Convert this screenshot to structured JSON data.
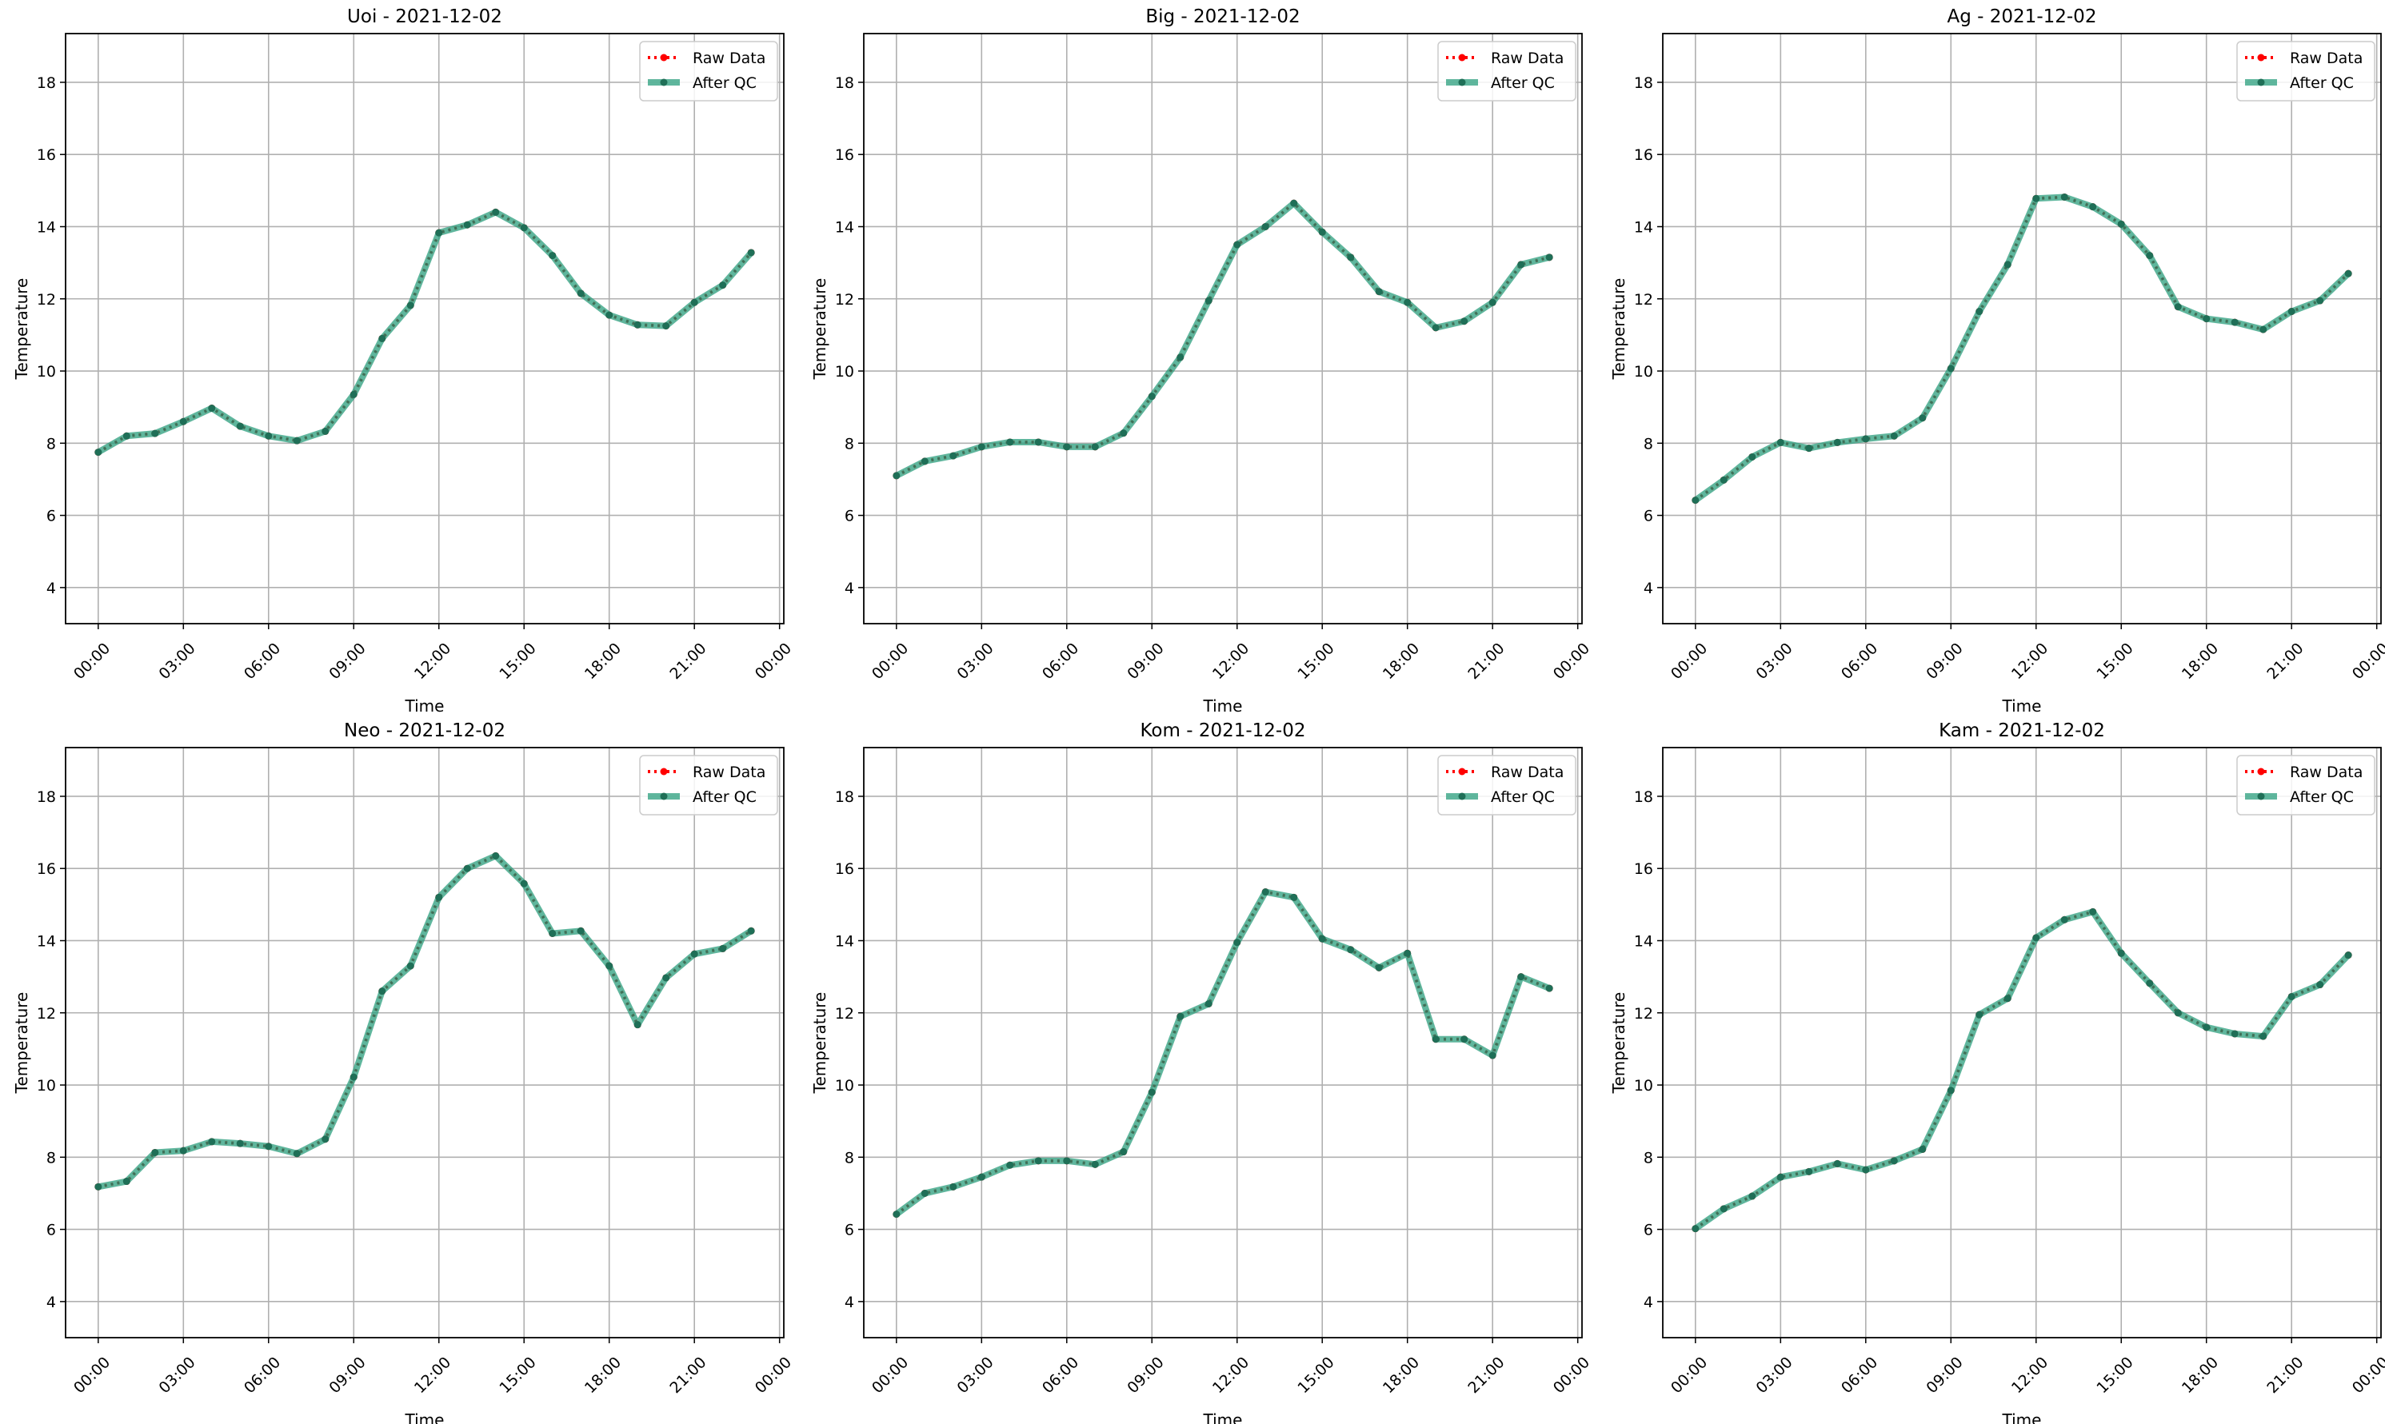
{
  "chart_data": {
    "type": "line",
    "layout": "2x3 grid",
    "xlabel": "Time",
    "ylabel": "Temperature",
    "x_hours": [
      0,
      1,
      2,
      3,
      4,
      5,
      6,
      7,
      8,
      9,
      10,
      11,
      12,
      13,
      14,
      15,
      16,
      17,
      18,
      19,
      20,
      21,
      22,
      23
    ],
    "xlim_hours": [
      -1.15,
      24.15
    ],
    "ylim": [
      3.0,
      19.35
    ],
    "xtick_hours": [
      0,
      3,
      6,
      9,
      12,
      15,
      18,
      21,
      24
    ],
    "xtick_labels": [
      "00:00",
      "03:00",
      "06:00",
      "09:00",
      "12:00",
      "15:00",
      "18:00",
      "21:00",
      "00:00"
    ],
    "yticks": [
      4,
      6,
      8,
      10,
      12,
      14,
      16,
      18
    ],
    "ytick_labels": [
      "4",
      "6",
      "8",
      "10",
      "12",
      "14",
      "16",
      "18"
    ],
    "grid": true,
    "legend_placement": "top-right",
    "legend": [
      "Raw Data",
      "After QC"
    ],
    "colors": {
      "raw": "#ff0000",
      "qc": "#2a9d7c",
      "qc_marker": "#1f6f57",
      "grid": "#b0b0b0"
    },
    "panels": [
      {
        "title": "Uoi - 2021-12-02",
        "raw": [
          7.75,
          8.2,
          8.27,
          8.6,
          8.97,
          8.47,
          8.2,
          8.07,
          8.33,
          9.35,
          10.9,
          11.82,
          13.83,
          14.05,
          14.4,
          13.97,
          13.2,
          12.15,
          11.55,
          11.28,
          11.25,
          11.9,
          12.38,
          13.28
        ],
        "qc": [
          7.75,
          8.2,
          8.27,
          8.6,
          8.97,
          8.47,
          8.2,
          8.07,
          8.33,
          9.35,
          10.9,
          11.82,
          13.83,
          14.05,
          14.4,
          13.97,
          13.2,
          12.15,
          11.55,
          11.28,
          11.25,
          11.9,
          12.38,
          13.28
        ]
      },
      {
        "title": "Big - 2021-12-02",
        "raw": [
          7.1,
          7.5,
          7.65,
          7.9,
          8.03,
          8.03,
          7.9,
          7.9,
          8.28,
          9.3,
          10.38,
          11.95,
          13.5,
          14.0,
          14.65,
          13.85,
          13.15,
          12.2,
          11.9,
          11.2,
          11.38,
          11.9,
          12.95,
          13.15
        ],
        "qc": [
          7.1,
          7.5,
          7.65,
          7.9,
          8.03,
          8.03,
          7.9,
          7.9,
          8.28,
          9.3,
          10.38,
          11.95,
          13.5,
          14.0,
          14.65,
          13.85,
          13.15,
          12.2,
          11.9,
          11.2,
          11.38,
          11.9,
          12.95,
          13.15
        ]
      },
      {
        "title": "Ag - 2021-12-02",
        "raw": [
          6.42,
          6.98,
          7.62,
          8.02,
          7.86,
          8.02,
          8.12,
          8.2,
          8.7,
          10.07,
          11.65,
          12.95,
          14.78,
          14.82,
          14.55,
          14.07,
          13.2,
          11.78,
          11.45,
          11.35,
          11.15,
          11.65,
          11.95,
          12.7
        ],
        "qc": [
          6.42,
          6.98,
          7.62,
          8.02,
          7.86,
          8.02,
          8.12,
          8.2,
          8.7,
          10.07,
          11.65,
          12.95,
          14.78,
          14.82,
          14.55,
          14.07,
          13.2,
          11.78,
          11.45,
          11.35,
          11.15,
          11.65,
          11.95,
          12.7
        ]
      },
      {
        "title": "Neo - 2021-12-02",
        "raw": [
          7.18,
          7.33,
          8.13,
          8.18,
          8.43,
          8.38,
          8.3,
          8.1,
          8.5,
          10.22,
          12.6,
          13.3,
          15.2,
          16.0,
          16.35,
          15.58,
          14.2,
          14.27,
          13.3,
          11.67,
          12.97,
          13.63,
          13.78,
          14.27
        ],
        "qc": [
          7.18,
          7.33,
          8.13,
          8.18,
          8.43,
          8.38,
          8.3,
          8.1,
          8.5,
          10.22,
          12.6,
          13.3,
          15.2,
          16.0,
          16.35,
          15.58,
          14.2,
          14.27,
          13.3,
          11.67,
          12.97,
          13.63,
          13.78,
          14.27
        ]
      },
      {
        "title": "Kom - 2021-12-02",
        "raw": [
          6.42,
          7.0,
          7.18,
          7.45,
          7.78,
          7.9,
          7.9,
          7.8,
          8.15,
          9.8,
          11.9,
          12.25,
          13.95,
          15.35,
          15.2,
          14.05,
          13.75,
          13.25,
          13.65,
          11.27,
          11.27,
          10.82,
          13.0,
          12.68
        ],
        "qc": [
          6.42,
          7.0,
          7.18,
          7.45,
          7.78,
          7.9,
          7.9,
          7.8,
          8.15,
          9.8,
          11.9,
          12.25,
          13.95,
          15.35,
          15.2,
          14.05,
          13.75,
          13.25,
          13.65,
          11.27,
          11.27,
          10.82,
          13.0,
          12.68
        ]
      },
      {
        "title": "Kam - 2021-12-02",
        "raw": [
          6.02,
          6.57,
          6.92,
          7.45,
          7.6,
          7.82,
          7.65,
          7.9,
          8.22,
          9.85,
          11.95,
          12.4,
          14.08,
          14.58,
          14.8,
          13.65,
          12.82,
          12.0,
          11.6,
          11.42,
          11.35,
          12.45,
          12.78,
          13.6
        ],
        "qc": [
          6.02,
          6.57,
          6.92,
          7.45,
          7.6,
          7.82,
          7.65,
          7.9,
          8.22,
          9.85,
          11.95,
          12.4,
          14.08,
          14.58,
          14.8,
          13.65,
          12.82,
          12.0,
          11.6,
          11.42,
          11.35,
          12.45,
          12.78,
          13.6
        ]
      }
    ]
  }
}
